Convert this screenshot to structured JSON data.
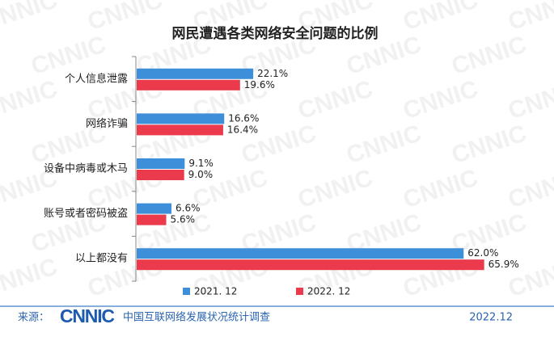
{
  "chart_data": {
    "type": "bar",
    "orientation": "horizontal",
    "title": "网民遭遇各类网络安全问题的比例",
    "categories": [
      "个人信息泄露",
      "网络诈骗",
      "设备中病毒或木马",
      "账号或者密码被盗",
      "以上都没有"
    ],
    "series": [
      {
        "name": "2021. 12",
        "color": "#3d8fd9",
        "values": [
          22.1,
          16.6,
          9.1,
          6.6,
          62.0
        ],
        "value_labels": [
          "22.1%",
          "16.6%",
          "9.1%",
          "6.6%",
          "62.0%"
        ]
      },
      {
        "name": "2022. 12",
        "color": "#ea3a4b",
        "values": [
          19.6,
          16.4,
          9.0,
          5.6,
          65.9
        ],
        "value_labels": [
          "19.6%",
          "16.4%",
          "9.0%",
          "5.6%",
          "65.9%"
        ]
      }
    ],
    "legend": "bottom"
  },
  "footer": {
    "source_label": "来源：",
    "logo": "CNNIC",
    "source": "中国互联网络发展状况统计调查",
    "date": "2022.12"
  },
  "watermark": "CNNIC"
}
